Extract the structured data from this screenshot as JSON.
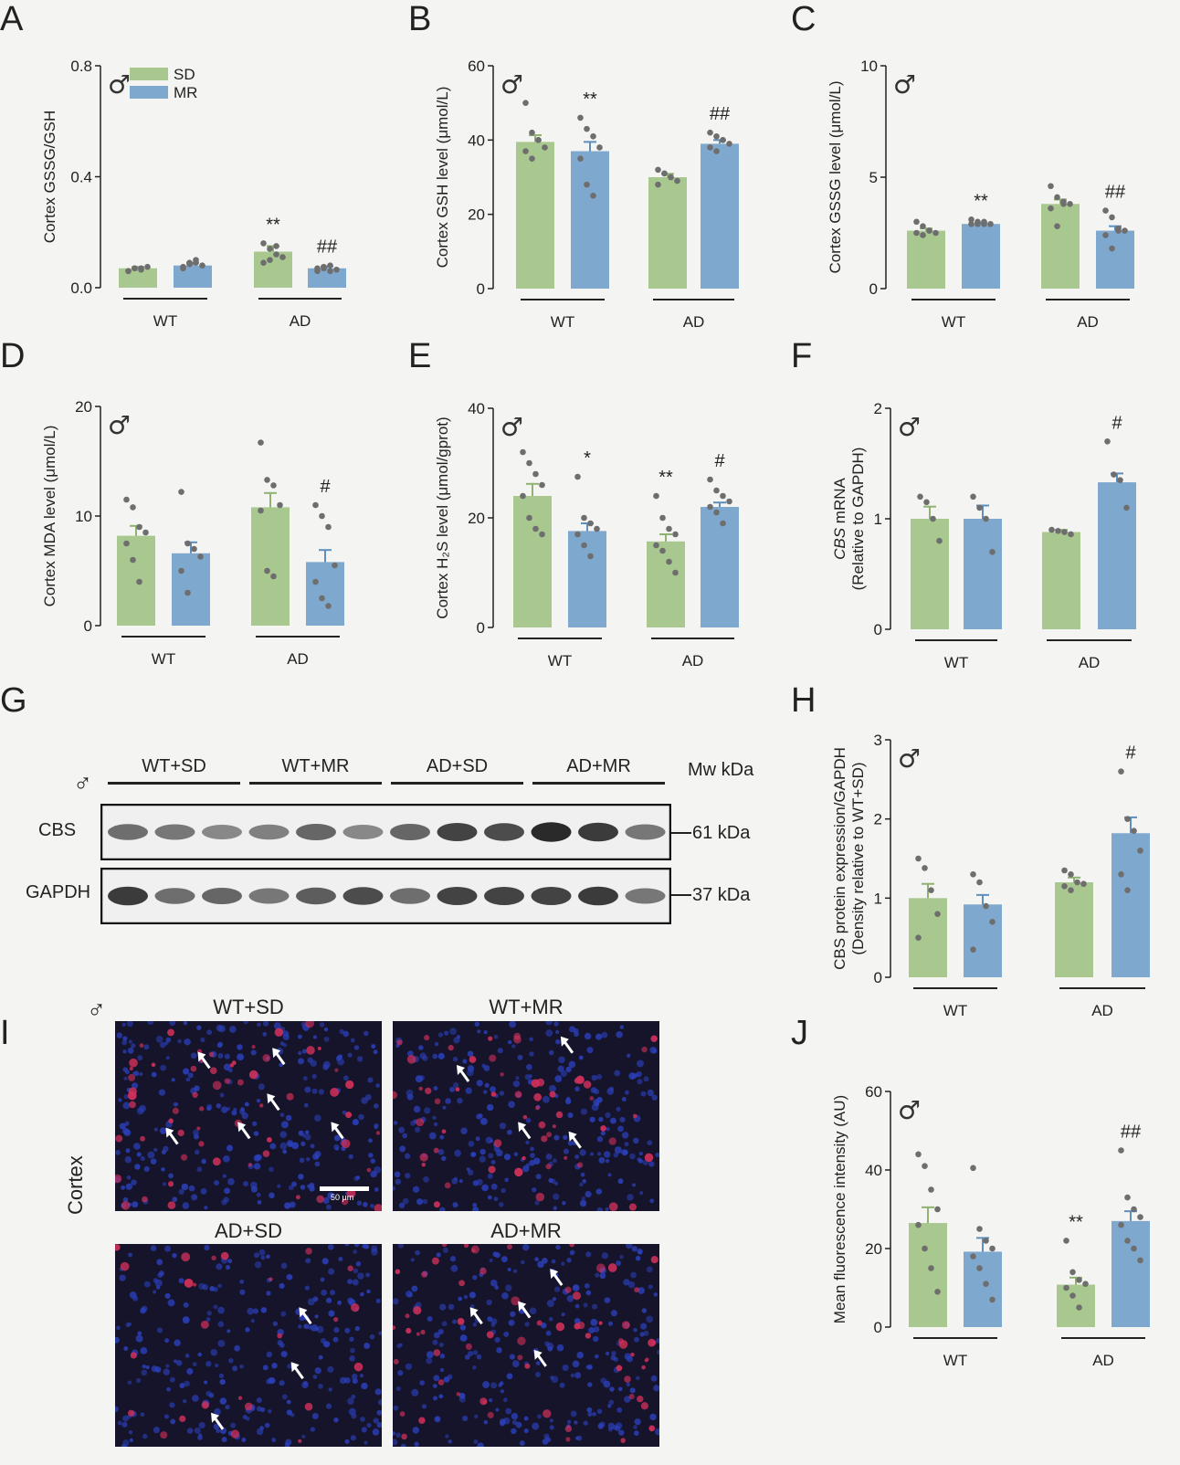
{
  "colors": {
    "SD": "#a9c88f",
    "MR": "#7fa8ce",
    "dot": "#6e6e6e",
    "err": "#333333"
  },
  "sex_symbol": "♂",
  "panels": {
    "A": "A",
    "B": "B",
    "C": "C",
    "D": "D",
    "E": "E",
    "F": "F",
    "G": "G",
    "H": "H",
    "I": "I",
    "J": "J"
  },
  "chart_data": [
    {
      "id": "A",
      "type": "bar",
      "ylabel": "Cortex GSSG/GSH",
      "ylabel_italic": "",
      "ylim": [
        0,
        0.8
      ],
      "yticks": [
        "0.0",
        "0.4",
        "0.8"
      ],
      "ytick_vals": [
        0,
        0.4,
        0.8
      ],
      "groups": [
        "WT",
        "AD"
      ],
      "legend": [
        "SD",
        "MR"
      ],
      "series": [
        {
          "name": "SD",
          "values": [
            0.07,
            0.13
          ],
          "err": [
            0.005,
            0.02
          ]
        },
        {
          "name": "MR",
          "values": [
            0.08,
            0.07
          ],
          "err": [
            0.01,
            0.007
          ]
        }
      ],
      "dots": [
        [
          0.06,
          0.07,
          0.065,
          0.075,
          0.06,
          0.07,
          0.07
        ],
        [
          0.07,
          0.09,
          0.1,
          0.08,
          0.075,
          0.085,
          0.09
        ],
        [
          0.09,
          0.14,
          0.15,
          0.11,
          0.16,
          0.1,
          0.12
        ],
        [
          0.06,
          0.07,
          0.08,
          0.065,
          0.07,
          0.075,
          0.06
        ]
      ],
      "annotations": [
        "",
        "",
        "**",
        "##"
      ]
    },
    {
      "id": "B",
      "type": "bar",
      "ylabel": "Cortex GSH level (μmol/L)",
      "ylabel_italic": "",
      "ylim": [
        0,
        60
      ],
      "yticks": [
        "0",
        "20",
        "40",
        "60"
      ],
      "ytick_vals": [
        0,
        20,
        40,
        60
      ],
      "groups": [
        "WT",
        "AD"
      ],
      "series": [
        {
          "name": "SD",
          "values": [
            39.5,
            30
          ],
          "err": [
            1.8,
            0.9
          ]
        },
        {
          "name": "MR",
          "values": [
            37,
            39
          ],
          "err": [
            2.5,
            1
          ]
        }
      ],
      "dots": [
        [
          50,
          42,
          40,
          38,
          37,
          35,
          40
        ],
        [
          46,
          43,
          41,
          38,
          35,
          28,
          25
        ],
        [
          32,
          31,
          30,
          29,
          28,
          31,
          30
        ],
        [
          42,
          41,
          40,
          39,
          38,
          37,
          40
        ]
      ],
      "annotations": [
        "",
        "**",
        "",
        "##"
      ]
    },
    {
      "id": "C",
      "type": "bar",
      "ylabel": "Cortex GSSG level (μmol/L)",
      "ylabel_italic": "",
      "ylim": [
        0,
        10
      ],
      "yticks": [
        "0",
        "5",
        "10"
      ],
      "ytick_vals": [
        0,
        5,
        10
      ],
      "groups": [
        "WT",
        "AD"
      ],
      "series": [
        {
          "name": "SD",
          "values": [
            2.6,
            3.8
          ],
          "err": [
            0.1,
            0.2
          ]
        },
        {
          "name": "MR",
          "values": [
            2.9,
            2.6
          ],
          "err": [
            0.05,
            0.2
          ]
        }
      ],
      "dots": [
        [
          3.0,
          2.8,
          2.6,
          2.5,
          2.5,
          2.4,
          2.6
        ],
        [
          3.1,
          3.0,
          2.9,
          2.9,
          2.9,
          2.9,
          3.0
        ],
        [
          4.6,
          4.1,
          3.9,
          3.8,
          3.6,
          2.8,
          3.8
        ],
        [
          3.5,
          3.2,
          2.7,
          2.6,
          2.4,
          1.8,
          2.6
        ]
      ],
      "annotations": [
        "",
        "**",
        "",
        "##"
      ]
    },
    {
      "id": "D",
      "type": "bar",
      "ylabel": "Cortex MDA level (μmol/L)",
      "ylabel_italic": "",
      "ylim": [
        0,
        20
      ],
      "yticks": [
        "0",
        "10",
        "20"
      ],
      "ytick_vals": [
        0,
        10,
        20
      ],
      "groups": [
        "WT",
        "AD"
      ],
      "series": [
        {
          "name": "SD",
          "values": [
            8.2,
            10.8
          ],
          "err": [
            0.9,
            1.3
          ]
        },
        {
          "name": "MR",
          "values": [
            6.6,
            5.8
          ],
          "err": [
            1.0,
            1.1
          ]
        }
      ],
      "dots": [
        [
          11.5,
          10.8,
          9,
          8.5,
          7.5,
          6,
          4
        ],
        [
          12.2,
          7.5,
          7,
          6.3,
          5,
          3
        ],
        [
          16.7,
          13.3,
          12.8,
          11,
          10.5,
          5,
          4.5
        ],
        [
          11,
          10,
          9,
          5.5,
          4,
          2.5,
          1.8
        ]
      ],
      "annotations": [
        "",
        "",
        "",
        "#"
      ]
    },
    {
      "id": "E",
      "type": "bar",
      "ylabel": "Cortex H₂S level (μmol/gprot)",
      "ylabel_italic": "",
      "ylim": [
        0,
        40
      ],
      "yticks": [
        "0",
        "20",
        "40"
      ],
      "ytick_vals": [
        0,
        20,
        40
      ],
      "groups": [
        "WT",
        "AD"
      ],
      "series": [
        {
          "name": "SD",
          "values": [
            24,
            15.7
          ],
          "err": [
            2.2,
            1.3
          ]
        },
        {
          "name": "MR",
          "values": [
            17.6,
            22
          ],
          "err": [
            1.4,
            0.8
          ]
        }
      ],
      "dots": [
        [
          32,
          30,
          28,
          26,
          24,
          20,
          18,
          17
        ],
        [
          27.5,
          20,
          19,
          18,
          17,
          15,
          13
        ],
        [
          24,
          20,
          18,
          17,
          15,
          14,
          12,
          10
        ],
        [
          27,
          25,
          24,
          23,
          22,
          21,
          19
        ]
      ],
      "annotations": [
        "",
        "*",
        "**",
        "#"
      ]
    },
    {
      "id": "F",
      "type": "bar",
      "ylabel": "mRNA",
      "ylabel_italic": "CBS",
      "ylabel2": "(Relative to GAPDH)",
      "ylim": [
        0,
        2
      ],
      "yticks": [
        "0",
        "1",
        "2"
      ],
      "ytick_vals": [
        0,
        1,
        2
      ],
      "groups": [
        "WT",
        "AD"
      ],
      "series": [
        {
          "name": "SD",
          "values": [
            1.0,
            0.88
          ],
          "err": [
            0.11,
            0.02
          ]
        },
        {
          "name": "MR",
          "values": [
            1.0,
            1.33
          ],
          "err": [
            0.12,
            0.08
          ]
        }
      ],
      "dots": [
        [
          1.2,
          1.15,
          1.0,
          0.8
        ],
        [
          1.2,
          1.1,
          1.0,
          0.7
        ],
        [
          0.9,
          0.89,
          0.88,
          0.86
        ],
        [
          1.7,
          1.4,
          1.35,
          1.1
        ]
      ],
      "annotations": [
        "",
        "",
        "",
        "#"
      ]
    },
    {
      "id": "H",
      "type": "bar",
      "ylabel": "CBS protein expression/GAPDH",
      "ylabel_italic": "",
      "ylabel2": "(Density relative to WT+SD)",
      "ylim": [
        0,
        3
      ],
      "yticks": [
        "0",
        "1",
        "2",
        "3"
      ],
      "ytick_vals": [
        0,
        1,
        2,
        3
      ],
      "groups": [
        "WT",
        "AD"
      ],
      "series": [
        {
          "name": "SD",
          "values": [
            1.0,
            1.2
          ],
          "err": [
            0.18,
            0.06
          ]
        },
        {
          "name": "MR",
          "values": [
            0.92,
            1.82
          ],
          "err": [
            0.12,
            0.2
          ]
        }
      ],
      "dots": [
        [
          1.5,
          1.38,
          1.1,
          0.8,
          0.5
        ],
        [
          1.3,
          1.2,
          0.9,
          0.7,
          0.35
        ],
        [
          1.35,
          1.3,
          1.2,
          1.18,
          1.15,
          1.1
        ],
        [
          2.6,
          2.0,
          1.85,
          1.6,
          1.3,
          1.1
        ]
      ],
      "annotations": [
        "",
        "",
        "",
        "#"
      ]
    },
    {
      "id": "J",
      "type": "bar",
      "ylabel": "Mean fluorescence intensity (AU)",
      "ylabel_italic": "",
      "ylim": [
        0,
        60
      ],
      "yticks": [
        "0",
        "20",
        "40",
        "60"
      ],
      "ytick_vals": [
        0,
        20,
        40,
        60
      ],
      "groups": [
        "WT",
        "AD"
      ],
      "series": [
        {
          "name": "SD",
          "values": [
            26.5,
            10.8
          ],
          "err": [
            4,
            1.8
          ]
        },
        {
          "name": "MR",
          "values": [
            19.2,
            27
          ],
          "err": [
            3.5,
            2.5
          ]
        }
      ],
      "dots": [
        [
          44,
          41,
          35,
          30,
          26,
          20,
          15,
          9
        ],
        [
          40.5,
          25,
          22,
          20,
          18,
          15,
          11,
          7
        ],
        [
          22,
          14,
          12,
          11,
          10,
          8,
          5
        ],
        [
          45,
          33,
          30,
          28,
          26,
          22,
          20,
          17
        ]
      ],
      "annotations": [
        "",
        "",
        "**",
        "##"
      ]
    }
  ],
  "western": {
    "lanes": [
      "WT+SD",
      "WT+MR",
      "AD+SD",
      "AD+MR"
    ],
    "mw_header": "Mw kDa",
    "rows": [
      {
        "label": "CBS",
        "mw": "61 kDa",
        "intensity": [
          0.55,
          0.5,
          0.4,
          0.45,
          0.6,
          0.4,
          0.6,
          0.8,
          0.75,
          0.95,
          0.85,
          0.5
        ]
      },
      {
        "label": "GAPDH",
        "mw": "37 kDa",
        "intensity": [
          0.85,
          0.55,
          0.6,
          0.5,
          0.65,
          0.75,
          0.55,
          0.8,
          0.8,
          0.8,
          0.85,
          0.5
        ]
      }
    ]
  },
  "micrographs": {
    "titles": [
      "WT+SD",
      "WT+MR",
      "AD+SD",
      "AD+MR"
    ],
    "side_label": "Cortex",
    "scale_bar": "50 μm",
    "arrows": [
      [
        [
          0.32,
          0.18
        ],
        [
          0.6,
          0.16
        ],
        [
          0.58,
          0.4
        ],
        [
          0.47,
          0.55
        ],
        [
          0.82,
          0.55
        ],
        [
          0.2,
          0.58
        ]
      ],
      [
        [
          0.64,
          0.1
        ],
        [
          0.25,
          0.25
        ],
        [
          0.48,
          0.55
        ],
        [
          0.67,
          0.6
        ]
      ],
      [
        [
          0.7,
          0.33
        ],
        [
          0.67,
          0.6
        ],
        [
          0.37,
          0.85
        ]
      ],
      [
        [
          0.6,
          0.14
        ],
        [
          0.48,
          0.3
        ],
        [
          0.3,
          0.33
        ],
        [
          0.54,
          0.54
        ]
      ]
    ]
  }
}
